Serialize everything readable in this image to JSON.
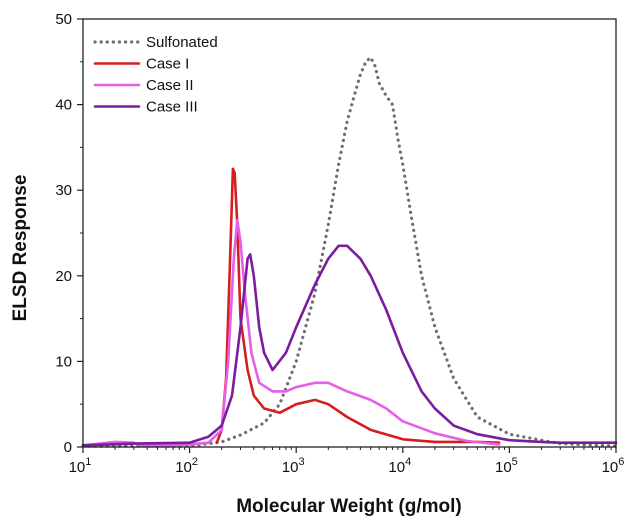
{
  "chart_data": {
    "type": "line",
    "title": "",
    "xlabel": "Molecular Weight (g/mol)",
    "ylabel": "ELSD Response",
    "x_scale": "log10",
    "xlim": [
      10,
      1000000
    ],
    "ylim": [
      0,
      50
    ],
    "x_ticks": [
      {
        "value": 10,
        "base": "10",
        "exp": "1"
      },
      {
        "value": 100,
        "base": "10",
        "exp": "2"
      },
      {
        "value": 1000,
        "base": "10",
        "exp": "3"
      },
      {
        "value": 10000,
        "base": "10",
        "exp": "4"
      },
      {
        "value": 100000,
        "base": "10",
        "exp": "5"
      },
      {
        "value": 1000000,
        "base": "10",
        "exp": "6"
      }
    ],
    "y_ticks": [
      {
        "value": 0,
        "label": "0"
      },
      {
        "value": 10,
        "label": "10"
      },
      {
        "value": 20,
        "label": "20"
      },
      {
        "value": 30,
        "label": "30"
      },
      {
        "value": 40,
        "label": "40"
      },
      {
        "value": 50,
        "label": "50"
      }
    ],
    "grid": false,
    "legend_position": "top-left",
    "series": [
      {
        "name": "Sulfonated",
        "color": "#6e6e6e",
        "style": "dotted",
        "points": [
          [
            10,
            0.1
          ],
          [
            100,
            0.1
          ],
          [
            200,
            0.6
          ],
          [
            300,
            1.4
          ],
          [
            500,
            2.8
          ],
          [
            700,
            5
          ],
          [
            1000,
            10
          ],
          [
            1500,
            18
          ],
          [
            2000,
            26
          ],
          [
            2500,
            33
          ],
          [
            3000,
            38
          ],
          [
            3500,
            41
          ],
          [
            4000,
            43.5
          ],
          [
            4500,
            45
          ],
          [
            5000,
            45.5
          ],
          [
            5500,
            44.5
          ],
          [
            6000,
            42.5
          ],
          [
            7000,
            41
          ],
          [
            8000,
            40
          ],
          [
            9000,
            36
          ],
          [
            10000,
            33
          ],
          [
            12000,
            27
          ],
          [
            15000,
            20
          ],
          [
            20000,
            14
          ],
          [
            30000,
            8
          ],
          [
            50000,
            3.5
          ],
          [
            100000,
            1.5
          ],
          [
            200000,
            0.8
          ],
          [
            300000,
            0.4
          ],
          [
            1000000,
            0.1
          ]
        ]
      },
      {
        "name": "Case I",
        "color": "#d41f1f",
        "style": "solid",
        "points": [
          [
            180,
            0.5
          ],
          [
            200,
            2
          ],
          [
            220,
            8
          ],
          [
            240,
            22
          ],
          [
            255,
            32.5
          ],
          [
            265,
            32
          ],
          [
            280,
            26
          ],
          [
            300,
            15
          ],
          [
            350,
            9
          ],
          [
            400,
            6
          ],
          [
            500,
            4.5
          ],
          [
            700,
            4
          ],
          [
            1000,
            5
          ],
          [
            1500,
            5.5
          ],
          [
            2000,
            5
          ],
          [
            3000,
            3.5
          ],
          [
            5000,
            2
          ],
          [
            10000,
            0.9
          ],
          [
            20000,
            0.6
          ],
          [
            50000,
            0.6
          ],
          [
            80000,
            0.5
          ]
        ]
      },
      {
        "name": "Case II",
        "color": "#e65fe8",
        "style": "solid",
        "points": [
          [
            10,
            0.2
          ],
          [
            20,
            0.6
          ],
          [
            30,
            0.5
          ],
          [
            35,
            0.1
          ],
          [
            100,
            0.3
          ],
          [
            150,
            0.5
          ],
          [
            200,
            2
          ],
          [
            230,
            10
          ],
          [
            260,
            22
          ],
          [
            280,
            26.5
          ],
          [
            300,
            24
          ],
          [
            330,
            18
          ],
          [
            380,
            11
          ],
          [
            450,
            7.5
          ],
          [
            600,
            6.5
          ],
          [
            800,
            6.5
          ],
          [
            1000,
            7
          ],
          [
            1500,
            7.5
          ],
          [
            2000,
            7.5
          ],
          [
            3000,
            6.5
          ],
          [
            5000,
            5.5
          ],
          [
            7000,
            4.5
          ],
          [
            10000,
            3
          ],
          [
            20000,
            1.6
          ],
          [
            40000,
            0.7
          ],
          [
            80000,
            0.3
          ]
        ]
      },
      {
        "name": "Case III",
        "color": "#7b1c9e",
        "style": "solid",
        "points": [
          [
            10,
            0.2
          ],
          [
            30,
            0.4
          ],
          [
            100,
            0.5
          ],
          [
            150,
            1.2
          ],
          [
            200,
            2.5
          ],
          [
            250,
            6
          ],
          [
            300,
            14
          ],
          [
            350,
            22
          ],
          [
            370,
            22.5
          ],
          [
            400,
            20
          ],
          [
            450,
            14
          ],
          [
            500,
            11
          ],
          [
            600,
            9
          ],
          [
            800,
            11
          ],
          [
            1000,
            14
          ],
          [
            1500,
            19
          ],
          [
            2000,
            22
          ],
          [
            2500,
            23.5
          ],
          [
            3000,
            23.5
          ],
          [
            4000,
            22
          ],
          [
            5000,
            20
          ],
          [
            7000,
            16
          ],
          [
            10000,
            11
          ],
          [
            15000,
            6.5
          ],
          [
            20000,
            4.5
          ],
          [
            30000,
            2.5
          ],
          [
            50000,
            1.5
          ],
          [
            100000,
            0.8
          ],
          [
            200000,
            0.6
          ],
          [
            300000,
            0.5
          ],
          [
            1000000,
            0.5
          ]
        ]
      }
    ]
  }
}
